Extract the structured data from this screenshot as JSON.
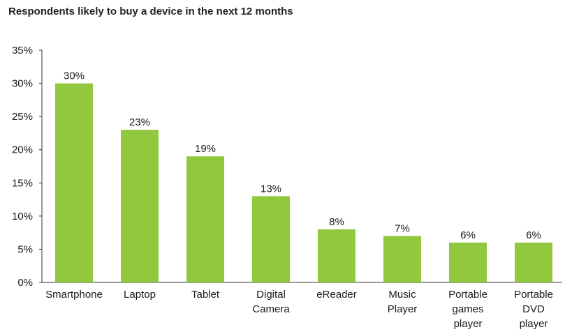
{
  "chart_data": {
    "type": "bar",
    "title": "Respondents likely to buy a device in the next 12 months",
    "xlabel": "",
    "ylabel": "",
    "ylim": [
      0,
      35
    ],
    "yticks": [
      "0%",
      "5%",
      "10%",
      "15%",
      "20%",
      "25%",
      "30%",
      "35%"
    ],
    "ytick_values": [
      0,
      5,
      10,
      15,
      20,
      25,
      30,
      35
    ],
    "categories": [
      "Smartphone",
      "Laptop",
      "Tablet",
      "Digital Camera",
      "eReader",
      "Music Player",
      "Portable games player",
      "Portable DVD player"
    ],
    "category_lines": [
      [
        "Smartphone"
      ],
      [
        "Laptop"
      ],
      [
        "Tablet"
      ],
      [
        "Digital",
        "Camera"
      ],
      [
        "eReader"
      ],
      [
        "Music",
        "Player"
      ],
      [
        "Portable",
        "games",
        "player"
      ],
      [
        "Portable",
        "DVD",
        "player"
      ]
    ],
    "values": [
      30,
      23,
      19,
      13,
      8,
      7,
      6,
      6
    ],
    "data_labels": [
      "30%",
      "23%",
      "19%",
      "13%",
      "8%",
      "7%",
      "6%",
      "6%"
    ],
    "bar_color": "#92c83e",
    "grid": false,
    "legend": "none"
  }
}
